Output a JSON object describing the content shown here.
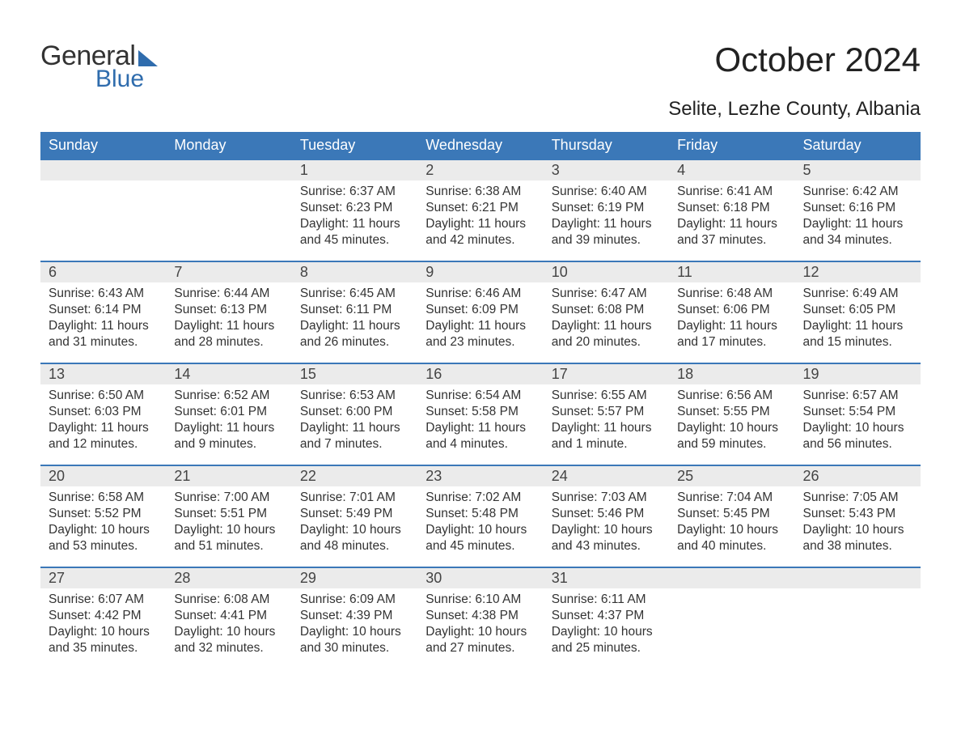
{
  "logo": {
    "word1": "General",
    "word2": "Blue"
  },
  "title": "October 2024",
  "subtitle": "Selite, Lezhe County, Albania",
  "colors": {
    "brand_blue": "#3b78b8",
    "logo_blue": "#2f6cad",
    "row_gray": "#ebebeb",
    "text": "#333333",
    "background": "#ffffff"
  },
  "calendar": {
    "type": "table",
    "day_headers": [
      "Sunday",
      "Monday",
      "Tuesday",
      "Wednesday",
      "Thursday",
      "Friday",
      "Saturday"
    ],
    "weeks": [
      [
        null,
        null,
        {
          "n": "1",
          "sr": "6:37 AM",
          "ss": "6:23 PM",
          "dl": "11 hours and 45 minutes."
        },
        {
          "n": "2",
          "sr": "6:38 AM",
          "ss": "6:21 PM",
          "dl": "11 hours and 42 minutes."
        },
        {
          "n": "3",
          "sr": "6:40 AM",
          "ss": "6:19 PM",
          "dl": "11 hours and 39 minutes."
        },
        {
          "n": "4",
          "sr": "6:41 AM",
          "ss": "6:18 PM",
          "dl": "11 hours and 37 minutes."
        },
        {
          "n": "5",
          "sr": "6:42 AM",
          "ss": "6:16 PM",
          "dl": "11 hours and 34 minutes."
        }
      ],
      [
        {
          "n": "6",
          "sr": "6:43 AM",
          "ss": "6:14 PM",
          "dl": "11 hours and 31 minutes."
        },
        {
          "n": "7",
          "sr": "6:44 AM",
          "ss": "6:13 PM",
          "dl": "11 hours and 28 minutes."
        },
        {
          "n": "8",
          "sr": "6:45 AM",
          "ss": "6:11 PM",
          "dl": "11 hours and 26 minutes."
        },
        {
          "n": "9",
          "sr": "6:46 AM",
          "ss": "6:09 PM",
          "dl": "11 hours and 23 minutes."
        },
        {
          "n": "10",
          "sr": "6:47 AM",
          "ss": "6:08 PM",
          "dl": "11 hours and 20 minutes."
        },
        {
          "n": "11",
          "sr": "6:48 AM",
          "ss": "6:06 PM",
          "dl": "11 hours and 17 minutes."
        },
        {
          "n": "12",
          "sr": "6:49 AM",
          "ss": "6:05 PM",
          "dl": "11 hours and 15 minutes."
        }
      ],
      [
        {
          "n": "13",
          "sr": "6:50 AM",
          "ss": "6:03 PM",
          "dl": "11 hours and 12 minutes."
        },
        {
          "n": "14",
          "sr": "6:52 AM",
          "ss": "6:01 PM",
          "dl": "11 hours and 9 minutes."
        },
        {
          "n": "15",
          "sr": "6:53 AM",
          "ss": "6:00 PM",
          "dl": "11 hours and 7 minutes."
        },
        {
          "n": "16",
          "sr": "6:54 AM",
          "ss": "5:58 PM",
          "dl": "11 hours and 4 minutes."
        },
        {
          "n": "17",
          "sr": "6:55 AM",
          "ss": "5:57 PM",
          "dl": "11 hours and 1 minute."
        },
        {
          "n": "18",
          "sr": "6:56 AM",
          "ss": "5:55 PM",
          "dl": "10 hours and 59 minutes."
        },
        {
          "n": "19",
          "sr": "6:57 AM",
          "ss": "5:54 PM",
          "dl": "10 hours and 56 minutes."
        }
      ],
      [
        {
          "n": "20",
          "sr": "6:58 AM",
          "ss": "5:52 PM",
          "dl": "10 hours and 53 minutes."
        },
        {
          "n": "21",
          "sr": "7:00 AM",
          "ss": "5:51 PM",
          "dl": "10 hours and 51 minutes."
        },
        {
          "n": "22",
          "sr": "7:01 AM",
          "ss": "5:49 PM",
          "dl": "10 hours and 48 minutes."
        },
        {
          "n": "23",
          "sr": "7:02 AM",
          "ss": "5:48 PM",
          "dl": "10 hours and 45 minutes."
        },
        {
          "n": "24",
          "sr": "7:03 AM",
          "ss": "5:46 PM",
          "dl": "10 hours and 43 minutes."
        },
        {
          "n": "25",
          "sr": "7:04 AM",
          "ss": "5:45 PM",
          "dl": "10 hours and 40 minutes."
        },
        {
          "n": "26",
          "sr": "7:05 AM",
          "ss": "5:43 PM",
          "dl": "10 hours and 38 minutes."
        }
      ],
      [
        {
          "n": "27",
          "sr": "6:07 AM",
          "ss": "4:42 PM",
          "dl": "10 hours and 35 minutes."
        },
        {
          "n": "28",
          "sr": "6:08 AM",
          "ss": "4:41 PM",
          "dl": "10 hours and 32 minutes."
        },
        {
          "n": "29",
          "sr": "6:09 AM",
          "ss": "4:39 PM",
          "dl": "10 hours and 30 minutes."
        },
        {
          "n": "30",
          "sr": "6:10 AM",
          "ss": "4:38 PM",
          "dl": "10 hours and 27 minutes."
        },
        {
          "n": "31",
          "sr": "6:11 AM",
          "ss": "4:37 PM",
          "dl": "10 hours and 25 minutes."
        },
        null,
        null
      ]
    ],
    "labels": {
      "sunrise": "Sunrise: ",
      "sunset": "Sunset: ",
      "daylight": "Daylight: "
    }
  }
}
